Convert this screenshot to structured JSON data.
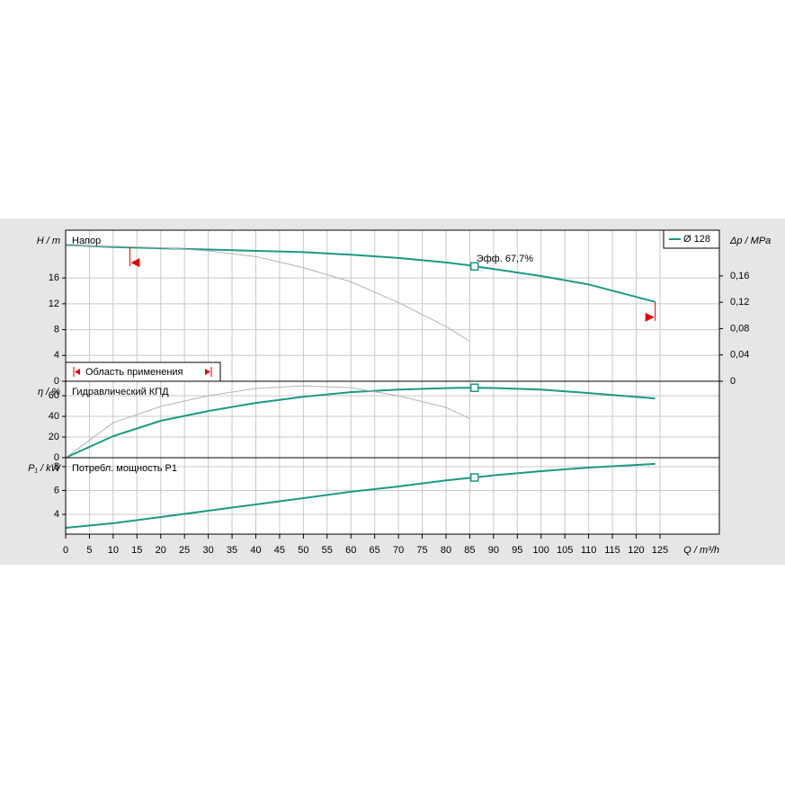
{
  "chart_data": [
    {
      "type": "line",
      "title": "Напор",
      "y_label": "H / m",
      "y2_label": "Δp / MPa",
      "x": [
        0,
        10,
        20,
        30,
        40,
        50,
        60,
        70,
        80,
        85,
        86,
        90,
        100,
        110,
        124
      ],
      "xlim": [
        0,
        137.5
      ],
      "ylim": [
        0,
        23.4
      ],
      "yticks": [
        0,
        4,
        8,
        12,
        16
      ],
      "y2lim": [
        0,
        0.2295
      ],
      "y2ticks": [
        0,
        {
          "value": 0.04,
          "label": "0,04"
        },
        {
          "value": 0.08,
          "label": "0,08"
        },
        {
          "value": 0.12,
          "label": "0,12"
        },
        {
          "value": 0.16,
          "label": "0,16"
        }
      ],
      "grid": true,
      "series": [
        {
          "name": "Ø 128",
          "color": "#1a9a86",
          "values": [
            21.1,
            20.8,
            20.6,
            20.4,
            20.2,
            20.0,
            19.6,
            19.1,
            18.4,
            17.95,
            17.8,
            17.4,
            16.3,
            15.0,
            12.3
          ]
        },
        {
          "color": "#b4b4b4",
          "values": [
            21.0,
            20.9,
            20.7,
            20.2,
            19.3,
            17.6,
            15.4,
            12.2,
            8.5,
            6.2,
            null,
            null,
            null,
            null,
            null
          ]
        }
      ],
      "operating_point": 86,
      "annotation": "Эфф.  67,7%",
      "application_range": [
        13.5,
        124
      ],
      "range_label": "Область применения"
    },
    {
      "type": "line",
      "title": "Гидравлический КПД",
      "y_label": "η / %",
      "x": [
        0,
        10,
        20,
        30,
        40,
        50,
        60,
        70,
        80,
        85,
        86,
        90,
        100,
        110,
        124
      ],
      "xlim": [
        0,
        137.5
      ],
      "ylim": [
        0,
        74
      ],
      "yticks": [
        0,
        20,
        40,
        60
      ],
      "grid": true,
      "series": [
        {
          "color": "#1a9a86",
          "values": [
            0,
            20.9,
            35.7,
            45.2,
            53,
            59,
            63.5,
            66,
            67.4,
            67.7,
            67.7,
            67.5,
            66,
            62.6,
            57.4
          ]
        },
        {
          "color": "#b4b4b4",
          "values": [
            0,
            33.9,
            49.6,
            60,
            67,
            69.6,
            67.8,
            60,
            48.7,
            38,
            null,
            null,
            null,
            null,
            null
          ]
        }
      ],
      "operating_point": 86
    },
    {
      "type": "line",
      "title": "Потребл. мощность P1",
      "y_label": "P₁ / kW",
      "x_label": "Q / m³/h",
      "x": [
        0,
        10,
        20,
        30,
        40,
        50,
        60,
        70,
        80,
        85,
        86,
        90,
        100,
        110,
        124
      ],
      "xlim": [
        0,
        137.5
      ],
      "ylim": [
        2.34,
        8.75
      ],
      "yticks": [
        4,
        6,
        8
      ],
      "grid": true,
      "xticks": [
        0,
        5,
        10,
        15,
        20,
        25,
        30,
        35,
        40,
        45,
        50,
        55,
        60,
        65,
        70,
        75,
        80,
        85,
        90,
        95,
        100,
        105,
        110,
        115,
        120,
        125
      ],
      "series": [
        {
          "color": "#1a9a86",
          "values": [
            2.87,
            3.25,
            3.77,
            4.3,
            4.83,
            5.36,
            5.89,
            6.34,
            6.85,
            7.05,
            7.09,
            7.27,
            7.62,
            7.92,
            8.23
          ]
        }
      ],
      "operating_point": 86
    }
  ]
}
